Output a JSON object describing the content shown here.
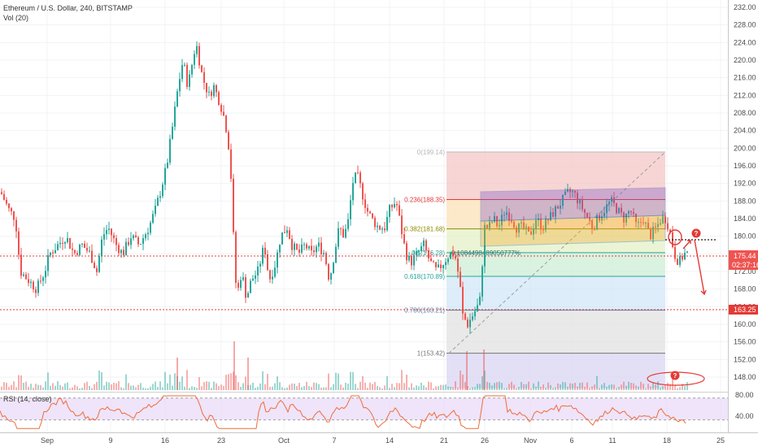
{
  "header": {
    "title": "Ethereum / U.S. Dollar, 240, BITSTAMP",
    "volume_label": "Vol (20)"
  },
  "rsi": {
    "label": "RSI (14, close)",
    "levels": [
      "80.00",
      "40.00"
    ]
  },
  "price_badges": {
    "current": "175.44",
    "countdown": "02:37:16",
    "support": "163.25"
  },
  "colors": {
    "up": "#26a69a",
    "down": "#ef5350",
    "rsi_line": "#ef6c3a",
    "rsi_band": "#e8d8f8",
    "trend_dotted": "#1a1a1a",
    "alert": "#e53935"
  },
  "fib": {
    "levels": [
      {
        "label": "0(199.14)",
        "value": 199.14,
        "color": "#b7b7b7",
        "fill": "#f4c7c7"
      },
      {
        "label": "0.236(188.35)",
        "value": 188.35,
        "color": "#e53935",
        "fill": "#f9e1b8"
      },
      {
        "label": "0.382(181.68)",
        "value": 181.68,
        "color": "#8d8d00",
        "fill": "#e4f2c7"
      },
      {
        "label": "0.5(176.28)",
        "value": 176.28,
        "color": "#26a69a",
        "fill": "#cdeed6"
      },
      {
        "label": "0.618(170.89)",
        "value": 170.89,
        "color": "#26a69a",
        "fill": "#d2e7f7"
      },
      {
        "label": "0.786(163.21)",
        "value": 163.21,
        "color": "#5b7fa5",
        "fill": "#e2e2e2"
      },
      {
        "label": "1(153.42)",
        "value": 153.42,
        "color": "#757575",
        "fill": "#d9d5f3"
      }
    ],
    "note": "0.1084498489050777%"
  },
  "alerts": [
    "?",
    "?"
  ],
  "chart_data": {
    "type": "candlestick",
    "title": "Ethereum / U.S. Dollar, 240, BITSTAMP",
    "ylim": [
      144,
      233
    ],
    "y_ticks": [
      "148.00",
      "152.00",
      "156.00",
      "160.00",
      "164.00",
      "168.00",
      "172.00",
      "176.00",
      "180.00",
      "184.00",
      "188.00",
      "192.00",
      "196.00",
      "200.00",
      "204.00",
      "208.00",
      "212.00",
      "216.00",
      "220.00",
      "224.00",
      "228.00",
      "232.00"
    ],
    "x_ticks": [
      "Sep",
      "9",
      "16",
      "23",
      "Oct",
      "7",
      "14",
      "21",
      "26",
      "Nov",
      "6",
      "11",
      "18",
      "25"
    ],
    "anchors": [
      [
        0,
        190
      ],
      [
        10,
        186
      ],
      [
        18,
        184
      ],
      [
        24,
        172
      ],
      [
        34,
        170
      ],
      [
        44,
        168
      ],
      [
        54,
        172
      ],
      [
        60,
        176
      ],
      [
        70,
        178
      ],
      [
        80,
        180
      ],
      [
        90,
        176
      ],
      [
        100,
        178
      ],
      [
        110,
        176
      ],
      [
        118,
        172
      ],
      [
        125,
        180
      ],
      [
        132,
        182
      ],
      [
        142,
        178
      ],
      [
        150,
        176
      ],
      [
        160,
        180
      ],
      [
        170,
        178
      ],
      [
        182,
        182
      ],
      [
        190,
        186
      ],
      [
        196,
        190
      ],
      [
        204,
        196
      ],
      [
        212,
        206
      ],
      [
        218,
        214
      ],
      [
        224,
        220
      ],
      [
        230,
        214
      ],
      [
        236,
        220
      ],
      [
        240,
        224
      ],
      [
        248,
        216
      ],
      [
        256,
        212
      ],
      [
        262,
        214
      ],
      [
        270,
        210
      ],
      [
        276,
        206
      ],
      [
        282,
        198
      ],
      [
        286,
        180
      ],
      [
        290,
        166
      ],
      [
        296,
        172
      ],
      [
        302,
        166
      ],
      [
        308,
        170
      ],
      [
        316,
        172
      ],
      [
        324,
        178
      ],
      [
        330,
        170
      ],
      [
        338,
        174
      ],
      [
        344,
        180
      ],
      [
        352,
        182
      ],
      [
        358,
        178
      ],
      [
        366,
        176
      ],
      [
        374,
        178
      ],
      [
        382,
        176
      ],
      [
        390,
        178
      ],
      [
        398,
        176
      ],
      [
        404,
        170
      ],
      [
        410,
        176
      ],
      [
        416,
        182
      ],
      [
        422,
        180
      ],
      [
        428,
        184
      ],
      [
        432,
        192
      ],
      [
        438,
        194
      ],
      [
        444,
        190
      ],
      [
        450,
        186
      ],
      [
        456,
        184
      ],
      [
        464,
        182
      ],
      [
        472,
        182
      ],
      [
        478,
        186
      ],
      [
        486,
        188
      ],
      [
        492,
        182
      ],
      [
        498,
        176
      ],
      [
        504,
        174
      ],
      [
        512,
        176
      ],
      [
        520,
        178
      ],
      [
        528,
        174
      ],
      [
        536,
        172
      ],
      [
        544,
        174
      ],
      [
        552,
        176
      ],
      [
        558,
        176
      ],
      [
        564,
        170
      ],
      [
        568,
        162
      ],
      [
        574,
        160
      ],
      [
        580,
        162
      ],
      [
        586,
        164
      ],
      [
        590,
        166
      ],
      [
        594,
        182
      ],
      [
        600,
        182
      ],
      [
        606,
        184
      ],
      [
        612,
        182
      ],
      [
        620,
        186
      ],
      [
        628,
        184
      ],
      [
        634,
        182
      ],
      [
        642,
        182
      ],
      [
        650,
        180
      ],
      [
        658,
        184
      ],
      [
        666,
        182
      ],
      [
        674,
        184
      ],
      [
        682,
        186
      ],
      [
        690,
        188
      ],
      [
        698,
        190
      ],
      [
        704,
        190
      ],
      [
        710,
        188
      ],
      [
        716,
        186
      ],
      [
        722,
        184
      ],
      [
        728,
        182
      ],
      [
        734,
        184
      ],
      [
        742,
        186
      ],
      [
        750,
        188
      ],
      [
        758,
        186
      ],
      [
        766,
        184
      ],
      [
        774,
        186
      ],
      [
        782,
        182
      ],
      [
        790,
        184
      ],
      [
        798,
        180
      ],
      [
        806,
        182
      ],
      [
        812,
        184
      ],
      [
        818,
        184
      ],
      [
        824,
        180
      ],
      [
        828,
        176
      ],
      [
        834,
        174
      ],
      [
        840,
        176
      ],
      [
        845,
        176
      ]
    ],
    "rsi_ylim": [
      20,
      90
    ],
    "rsi_levels": [
      80,
      40
    ]
  }
}
